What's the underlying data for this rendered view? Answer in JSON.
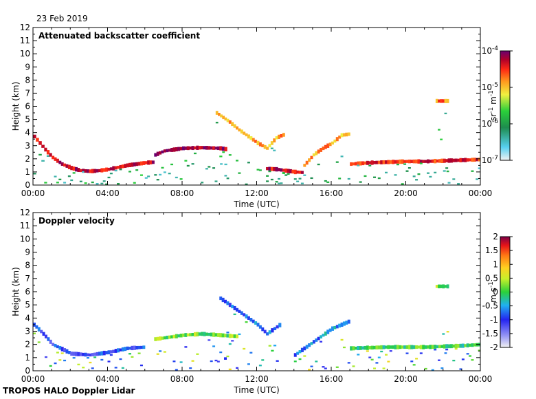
{
  "header": {
    "date": "23 Feb 2019"
  },
  "footer": {
    "instrument": "TROPOS HALO Doppler Lidar"
  },
  "chart_data": [
    {
      "type": "heatmap",
      "title": "Attenuated backscatter coefficient",
      "xlabel": "Time (UTC)",
      "ylabel": "Height (km)",
      "xlim": [
        0,
        24
      ],
      "ylim": [
        0,
        12
      ],
      "x_ticks": [
        "00:00",
        "04:00",
        "08:00",
        "12:00",
        "16:00",
        "20:00",
        "00:00"
      ],
      "y_ticks": [
        "0",
        "1",
        "2",
        "3",
        "4",
        "5",
        "6",
        "7",
        "8",
        "9",
        "10",
        "11",
        "12"
      ],
      "colorbar": {
        "scale": "log",
        "range": [
          1e-07,
          0.0001
        ],
        "ticks": [
          {
            "base": "10",
            "exp": "-4"
          },
          {
            "base": "10",
            "exp": "-5"
          },
          {
            "base": "10",
            "exp": "-6"
          },
          {
            "base": "10",
            "exp": "-7"
          }
        ],
        "label": {
          "main": "sr",
          "exp1": "-1",
          "mid": " m",
          "exp2": "-1"
        }
      },
      "features": [
        {
          "name": "boundary-layer-top-layer",
          "t": [
            0,
            0.3,
            0.6,
            1,
            1.5,
            2,
            2.5,
            3,
            3.5,
            4,
            4.5,
            5,
            5.5,
            6,
            6.5
          ],
          "h": [
            3.7,
            3.2,
            2.7,
            2.1,
            1.6,
            1.3,
            1.1,
            1.05,
            1.1,
            1.2,
            1.35,
            1.5,
            1.6,
            1.7,
            1.75
          ],
          "level": 0.9
        },
        {
          "name": "cloud-layer-morning",
          "t": [
            6.5,
            7,
            8,
            9,
            10,
            10.4
          ],
          "h": [
            2.3,
            2.6,
            2.8,
            2.85,
            2.8,
            2.7
          ],
          "level": 0.95
        },
        {
          "name": "elevated-layer",
          "t": [
            9.8,
            10.5,
            11,
            11.5,
            12,
            12.5,
            13,
            13.5
          ],
          "h": [
            5.5,
            4.8,
            4.2,
            3.7,
            3.2,
            2.8,
            3.6,
            3.9
          ],
          "level": 0.7
        },
        {
          "name": "noon-cloud-base",
          "t": [
            12.5,
            13,
            13.5,
            14,
            14.5
          ],
          "h": [
            1.25,
            1.2,
            1.1,
            1.0,
            0.95
          ],
          "level": 0.9
        },
        {
          "name": "afternoon-plume",
          "t": [
            14.5,
            15,
            15.5,
            16,
            16.5,
            17
          ],
          "h": [
            1.5,
            2.3,
            2.8,
            3.2,
            3.8,
            3.9
          ],
          "level": 0.7
        },
        {
          "name": "evening-cloud-layer",
          "t": [
            17,
            18,
            19,
            20,
            21,
            22,
            23,
            24
          ],
          "h": [
            1.6,
            1.7,
            1.75,
            1.8,
            1.8,
            1.85,
            1.9,
            1.95
          ],
          "level": 0.85
        },
        {
          "name": "high-cloud-patch",
          "t": [
            21.6,
            22.3
          ],
          "h": [
            6.4,
            6.4
          ],
          "level": 0.75
        }
      ]
    },
    {
      "type": "heatmap",
      "title": "Doppler velocity",
      "xlabel": "Time (UTC)",
      "ylabel": "Height (km)",
      "xlim": [
        0,
        24
      ],
      "ylim": [
        0,
        12
      ],
      "x_ticks": [
        "00:00",
        "04:00",
        "08:00",
        "12:00",
        "16:00",
        "20:00",
        "00:00"
      ],
      "y_ticks": [
        "0",
        "1",
        "2",
        "3",
        "4",
        "5",
        "6",
        "7",
        "8",
        "9",
        "10",
        "11",
        "12"
      ],
      "colorbar": {
        "scale": "linear",
        "range": [
          -2,
          2
        ],
        "ticks": [
          "2",
          "1.5",
          "1",
          "0.5",
          "0",
          "-0.5",
          "-1",
          "-1.5",
          "-2"
        ],
        "label": {
          "main": "m s",
          "exp1": "-1"
        }
      },
      "features": [
        {
          "name": "boundary-layer-velocity",
          "t": [
            0,
            0.5,
            1,
            2,
            3,
            4,
            5,
            6
          ],
          "h": [
            3.5,
            2.8,
            2.0,
            1.3,
            1.2,
            1.4,
            1.7,
            1.8
          ],
          "level": 0.25
        },
        {
          "name": "layer-velocity-morning",
          "t": [
            6.5,
            8,
            9,
            10,
            11
          ],
          "h": [
            2.4,
            2.7,
            2.8,
            2.7,
            2.6
          ],
          "level": 0.55
        },
        {
          "name": "elevated-velocity",
          "t": [
            10,
            11,
            12,
            12.5,
            13.3
          ],
          "h": [
            5.5,
            4.5,
            3.5,
            2.8,
            3.6
          ],
          "level": 0.3
        },
        {
          "name": "afternoon-velocity",
          "t": [
            14,
            15,
            16,
            17
          ],
          "h": [
            1.2,
            2.2,
            3.2,
            3.8
          ],
          "level": 0.35
        },
        {
          "name": "evening-velocity",
          "t": [
            17,
            19,
            21,
            23,
            24
          ],
          "h": [
            1.7,
            1.8,
            1.8,
            1.9,
            2.0
          ],
          "level": 0.5
        },
        {
          "name": "high-velocity-patch",
          "t": [
            21.6,
            22.3
          ],
          "h": [
            6.4,
            6.4
          ],
          "level": 0.55
        }
      ]
    }
  ]
}
